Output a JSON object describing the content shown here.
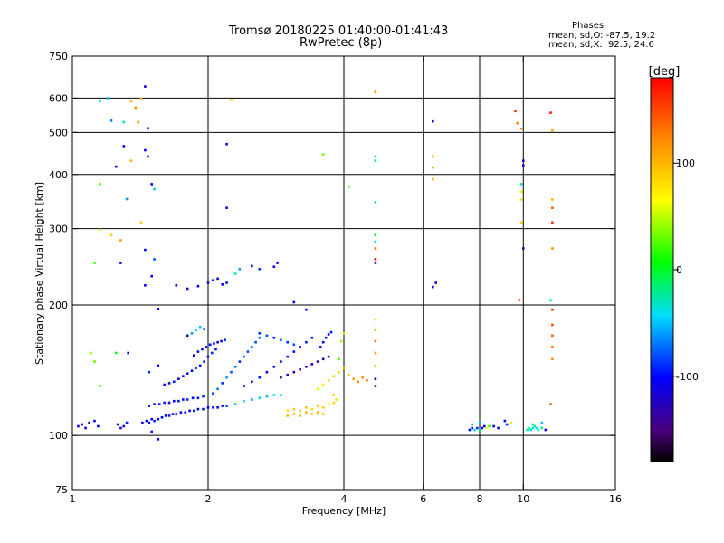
{
  "chart_data": {
    "type": "scatter",
    "title": "Tromsø 20180225 01:40:00-01:41:43",
    "subtitle": "RwPretec (8p)",
    "xlabel": "Frequency [MHz]",
    "ylabel": "Stationary phase Virtual Height [km]",
    "x_scale": "log",
    "y_scale": "log",
    "xlim": [
      1,
      16
    ],
    "ylim": [
      75,
      750
    ],
    "x_ticks": [
      1,
      2,
      4,
      6,
      8,
      10,
      16
    ],
    "x_grid": [
      2,
      4,
      6,
      8,
      10
    ],
    "y_ticks": [
      75,
      100,
      200,
      300,
      400,
      500,
      600,
      750
    ],
    "y_grid": [
      100,
      200,
      300,
      400,
      500,
      600
    ],
    "grid": true,
    "colorbar": {
      "label": "[deg]",
      "range": [
        -180,
        180
      ],
      "ticks": [
        100,
        0,
        -100
      ],
      "colormap": "rainbow"
    },
    "phase_stats": {
      "heading": "Phases",
      "line_o": "mean, sd,O: -87.5, 19.2",
      "line_x": "mean, sd,X:  92.5, 24.6"
    },
    "points": [
      [
        1.03,
        105,
        -110
      ],
      [
        1.05,
        106,
        -100
      ],
      [
        1.07,
        104,
        -115
      ],
      [
        1.09,
        107,
        -105
      ],
      [
        1.12,
        108,
        -110
      ],
      [
        1.14,
        105,
        -100
      ],
      [
        1.26,
        106,
        -110
      ],
      [
        1.28,
        104,
        -120
      ],
      [
        1.3,
        105,
        -105
      ],
      [
        1.32,
        107,
        -95
      ],
      [
        1.43,
        107,
        -110
      ],
      [
        1.46,
        108,
        -100
      ],
      [
        1.48,
        107,
        -105
      ],
      [
        1.5,
        109,
        -110
      ],
      [
        1.52,
        108,
        -95
      ],
      [
        1.55,
        109,
        -105
      ],
      [
        1.58,
        110,
        -100
      ],
      [
        1.61,
        111,
        -110
      ],
      [
        1.64,
        111,
        -95
      ],
      [
        1.67,
        112,
        -105
      ],
      [
        1.7,
        112,
        -100
      ],
      [
        1.74,
        113,
        -110
      ],
      [
        1.78,
        113,
        -95
      ],
      [
        1.82,
        114,
        -100
      ],
      [
        1.86,
        114,
        -90
      ],
      [
        1.9,
        115,
        -105
      ],
      [
        1.95,
        115,
        -95
      ],
      [
        2.0,
        116,
        -100
      ],
      [
        2.05,
        116,
        -90
      ],
      [
        2.1,
        116,
        -100
      ],
      [
        2.15,
        117,
        -95
      ],
      [
        2.2,
        117,
        -85
      ],
      [
        1.48,
        117,
        -110
      ],
      [
        1.52,
        118,
        -100
      ],
      [
        1.56,
        118,
        -105
      ],
      [
        1.6,
        119,
        -95
      ],
      [
        1.64,
        119,
        -110
      ],
      [
        1.68,
        120,
        -100
      ],
      [
        1.72,
        120,
        -95
      ],
      [
        1.76,
        121,
        -105
      ],
      [
        1.8,
        121,
        -90
      ],
      [
        1.85,
        122,
        -100
      ],
      [
        1.9,
        122,
        -95
      ],
      [
        1.95,
        123,
        -90
      ],
      [
        1.6,
        131,
        -100
      ],
      [
        1.64,
        132,
        -110
      ],
      [
        1.68,
        133,
        -95
      ],
      [
        1.72,
        135,
        -100
      ],
      [
        1.76,
        137,
        -105
      ],
      [
        1.8,
        139,
        -95
      ],
      [
        1.84,
        141,
        -100
      ],
      [
        1.88,
        143,
        -90
      ],
      [
        1.92,
        145,
        -100
      ],
      [
        1.96,
        148,
        -95
      ],
      [
        2.0,
        152,
        -100
      ],
      [
        2.04,
        155,
        -90
      ],
      [
        2.08,
        158,
        -95
      ],
      [
        1.86,
        153,
        -110
      ],
      [
        1.9,
        156,
        -100
      ],
      [
        1.94,
        158,
        -95
      ],
      [
        1.98,
        160,
        -105
      ],
      [
        2.02,
        162,
        -100
      ],
      [
        2.06,
        163,
        -95
      ],
      [
        2.1,
        164,
        -110
      ],
      [
        2.14,
        165,
        -100
      ],
      [
        2.18,
        166,
        -90
      ],
      [
        1.8,
        170,
        -100
      ],
      [
        1.84,
        172,
        -60
      ],
      [
        1.88,
        175,
        -40
      ],
      [
        1.92,
        178,
        -50
      ],
      [
        1.96,
        176,
        -80
      ],
      [
        2.05,
        125,
        -80
      ],
      [
        2.1,
        128,
        -70
      ],
      [
        2.15,
        132,
        -90
      ],
      [
        2.2,
        136,
        -60
      ],
      [
        2.25,
        140,
        -80
      ],
      [
        2.3,
        144,
        -70
      ],
      [
        2.35,
        148,
        -90
      ],
      [
        2.4,
        152,
        -75
      ],
      [
        2.45,
        156,
        -85
      ],
      [
        2.5,
        160,
        -65
      ],
      [
        2.55,
        164,
        -80
      ],
      [
        2.6,
        168,
        -70
      ],
      [
        2.3,
        118,
        -50
      ],
      [
        2.4,
        120,
        -40
      ],
      [
        2.5,
        121,
        -60
      ],
      [
        2.6,
        122,
        -45
      ],
      [
        2.7,
        123,
        -50
      ],
      [
        2.8,
        124,
        -40
      ],
      [
        2.9,
        124,
        -35
      ],
      [
        2.4,
        130,
        -100
      ],
      [
        2.5,
        133,
        -110
      ],
      [
        2.6,
        136,
        -95
      ],
      [
        2.7,
        140,
        -105
      ],
      [
        2.8,
        144,
        -100
      ],
      [
        2.9,
        148,
        -110
      ],
      [
        3.0,
        152,
        -95
      ],
      [
        3.1,
        156,
        -100
      ],
      [
        3.2,
        160,
        -110
      ],
      [
        3.3,
        164,
        -95
      ],
      [
        3.4,
        168,
        -100
      ],
      [
        2.6,
        172,
        -90
      ],
      [
        2.7,
        170,
        -80
      ],
      [
        2.8,
        168,
        -100
      ],
      [
        2.9,
        166,
        -70
      ],
      [
        3.0,
        164,
        -90
      ],
      [
        3.1,
        162,
        -80
      ],
      [
        3.2,
        160,
        -100
      ],
      [
        2.9,
        136,
        -130
      ],
      [
        3.0,
        138,
        -120
      ],
      [
        3.1,
        140,
        -140
      ],
      [
        3.2,
        142,
        -120
      ],
      [
        3.3,
        144,
        -135
      ],
      [
        3.4,
        146,
        -125
      ],
      [
        3.5,
        148,
        -140
      ],
      [
        3.6,
        150,
        -120
      ],
      [
        3.7,
        152,
        -130
      ],
      [
        3.0,
        114,
        80
      ],
      [
        3.1,
        115,
        90
      ],
      [
        3.2,
        114,
        85
      ],
      [
        3.3,
        116,
        95
      ],
      [
        3.4,
        115,
        80
      ],
      [
        3.5,
        117,
        90
      ],
      [
        3.6,
        116,
        85
      ],
      [
        3.7,
        118,
        75
      ],
      [
        3.8,
        119,
        85
      ],
      [
        3.0,
        111,
        100
      ],
      [
        3.1,
        112,
        95
      ],
      [
        3.2,
        111,
        105
      ],
      [
        3.3,
        113,
        100
      ],
      [
        3.4,
        112,
        90
      ],
      [
        3.5,
        113,
        100
      ],
      [
        3.6,
        112,
        95
      ],
      [
        3.5,
        128,
        60
      ],
      [
        3.6,
        131,
        70
      ],
      [
        3.7,
        134,
        80
      ],
      [
        3.8,
        137,
        90
      ],
      [
        3.9,
        140,
        85
      ],
      [
        4.0,
        143,
        95
      ],
      [
        4.1,
        138,
        100
      ],
      [
        4.2,
        135,
        110
      ],
      [
        4.3,
        133,
        120
      ],
      [
        4.4,
        136,
        115
      ],
      [
        4.5,
        134,
        125
      ],
      [
        3.55,
        160,
        -110
      ],
      [
        3.6,
        164,
        -100
      ],
      [
        3.65,
        168,
        -120
      ],
      [
        3.7,
        171,
        -105
      ],
      [
        3.75,
        173,
        -95
      ],
      [
        3.9,
        150,
        20
      ],
      [
        3.95,
        165,
        40
      ],
      [
        4.0,
        172,
        50
      ],
      [
        3.8,
        124,
        90
      ],
      [
        3.85,
        121,
        80
      ],
      [
        1.55,
        196,
        -100
      ],
      [
        1.7,
        222,
        -110
      ],
      [
        1.8,
        218,
        -120
      ],
      [
        1.9,
        221,
        -100
      ],
      [
        2.0,
        225,
        -110
      ],
      [
        2.05,
        228,
        -95
      ],
      [
        2.1,
        230,
        -100
      ],
      [
        2.15,
        223,
        -110
      ],
      [
        2.2,
        225,
        -95
      ],
      [
        2.3,
        236,
        -20
      ],
      [
        2.35,
        242,
        -60
      ],
      [
        2.5,
        246,
        -100
      ],
      [
        2.6,
        242,
        -90
      ],
      [
        2.8,
        245,
        -110
      ],
      [
        2.85,
        250,
        -100
      ],
      [
        3.1,
        203,
        -100
      ],
      [
        3.3,
        195,
        -110
      ],
      [
        1.15,
        590,
        -30
      ],
      [
        1.2,
        600,
        -50
      ],
      [
        1.22,
        532,
        -70
      ],
      [
        1.3,
        528,
        -20
      ],
      [
        1.35,
        590,
        100
      ],
      [
        1.38,
        570,
        120
      ],
      [
        1.4,
        528,
        120
      ],
      [
        1.42,
        598,
        100
      ],
      [
        1.45,
        638,
        -110
      ],
      [
        1.47,
        511,
        -100
      ],
      [
        1.45,
        455,
        -100
      ],
      [
        1.47,
        440,
        -90
      ],
      [
        1.3,
        465,
        -100
      ],
      [
        1.35,
        430,
        100
      ],
      [
        1.5,
        380,
        -100
      ],
      [
        1.52,
        370,
        -50
      ],
      [
        1.25,
        417,
        -110
      ],
      [
        1.32,
        351,
        -60
      ],
      [
        1.42,
        310,
        90
      ],
      [
        1.15,
        380,
        20
      ],
      [
        1.22,
        290,
        90
      ],
      [
        1.28,
        282,
        110
      ],
      [
        1.45,
        268,
        -100
      ],
      [
        1.52,
        255,
        -80
      ],
      [
        1.28,
        250,
        -110
      ],
      [
        1.45,
        222,
        -100
      ],
      [
        1.5,
        233,
        -100
      ],
      [
        1.12,
        250,
        20
      ],
      [
        1.15,
        298,
        60
      ],
      [
        1.1,
        155,
        40
      ],
      [
        1.12,
        148,
        30
      ],
      [
        1.15,
        130,
        20
      ],
      [
        1.25,
        155,
        10
      ],
      [
        1.33,
        155,
        -110
      ],
      [
        1.55,
        145,
        -100
      ],
      [
        1.48,
        140,
        -90
      ],
      [
        1.55,
        98,
        -110
      ],
      [
        1.5,
        102,
        -100
      ],
      [
        2.2,
        470,
        -110
      ],
      [
        2.2,
        335,
        -100
      ],
      [
        2.25,
        595,
        90
      ],
      [
        3.6,
        445,
        30
      ],
      [
        4.1,
        375,
        20
      ],
      [
        4.7,
        620,
        120
      ],
      [
        4.7,
        440,
        -10
      ],
      [
        4.7,
        430,
        -40
      ],
      [
        4.7,
        345,
        -20
      ],
      [
        4.7,
        290,
        0
      ],
      [
        4.7,
        280,
        -30
      ],
      [
        4.7,
        270,
        130
      ],
      [
        4.7,
        255,
        180
      ],
      [
        4.7,
        250,
        -150
      ],
      [
        4.7,
        185,
        80
      ],
      [
        4.7,
        175,
        100
      ],
      [
        4.7,
        165,
        130
      ],
      [
        4.7,
        155,
        110
      ],
      [
        4.7,
        145,
        90
      ],
      [
        4.7,
        135,
        -140
      ],
      [
        4.7,
        130,
        -150
      ],
      [
        6.3,
        530,
        -120
      ],
      [
        6.3,
        440,
        100
      ],
      [
        6.3,
        415,
        110
      ],
      [
        6.3,
        390,
        100
      ],
      [
        6.3,
        220,
        -110
      ],
      [
        6.4,
        225,
        -120
      ],
      [
        9.6,
        560,
        160
      ],
      [
        9.7,
        525,
        120
      ],
      [
        9.9,
        510,
        120
      ],
      [
        10.0,
        430,
        -110
      ],
      [
        10.0,
        420,
        -120
      ],
      [
        9.9,
        380,
        -30
      ],
      [
        9.9,
        365,
        60
      ],
      [
        9.9,
        350,
        80
      ],
      [
        9.9,
        310,
        90
      ],
      [
        10.0,
        270,
        -130
      ],
      [
        9.8,
        205,
        150
      ],
      [
        11.5,
        555,
        170
      ],
      [
        11.6,
        505,
        110
      ],
      [
        11.6,
        350,
        100
      ],
      [
        11.6,
        335,
        140
      ],
      [
        11.6,
        310,
        160
      ],
      [
        11.6,
        270,
        120
      ],
      [
        11.5,
        205,
        -30
      ],
      [
        11.6,
        195,
        160
      ],
      [
        11.6,
        180,
        150
      ],
      [
        11.6,
        170,
        140
      ],
      [
        11.6,
        160,
        130
      ],
      [
        11.6,
        150,
        120
      ],
      [
        11.5,
        118,
        140
      ],
      [
        7.6,
        103,
        -100
      ],
      [
        7.7,
        104,
        -110
      ],
      [
        7.8,
        103,
        -40
      ],
      [
        7.9,
        104,
        -90
      ],
      [
        8.0,
        103,
        -20
      ],
      [
        8.1,
        104,
        -100
      ],
      [
        8.2,
        105,
        -110
      ],
      [
        8.3,
        104,
        60
      ],
      [
        8.4,
        105,
        20
      ],
      [
        7.7,
        106,
        -60
      ],
      [
        8.0,
        107,
        -50
      ],
      [
        8.6,
        105,
        -110
      ],
      [
        8.8,
        104,
        -100
      ],
      [
        9.2,
        106,
        -90
      ],
      [
        9.4,
        107,
        80
      ],
      [
        9.1,
        108,
        -100
      ],
      [
        10.2,
        103,
        -30
      ],
      [
        10.3,
        104,
        -20
      ],
      [
        10.4,
        103,
        -40
      ],
      [
        10.5,
        104,
        -30
      ],
      [
        10.6,
        105,
        -20
      ],
      [
        10.7,
        104,
        -40
      ],
      [
        10.8,
        103,
        -30
      ],
      [
        11.0,
        104,
        -20
      ],
      [
        11.2,
        103,
        -110
      ],
      [
        11.0,
        107,
        -50
      ],
      [
        10.5,
        106,
        -40
      ]
    ]
  }
}
